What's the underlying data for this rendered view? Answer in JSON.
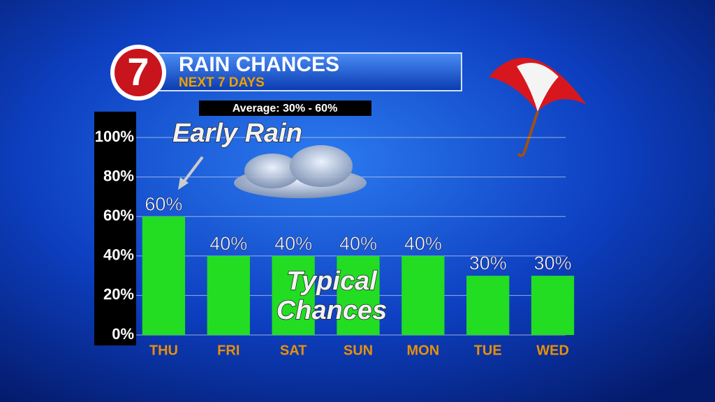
{
  "logo": "7",
  "chart_data": {
    "type": "bar",
    "title": "RAIN CHANCES",
    "subtitle": "NEXT 7 DAYS",
    "note": "Average: 30% - 60%",
    "annotations": [
      "Early Rain",
      "Typical",
      "Chances"
    ],
    "categories": [
      "THU",
      "FRI",
      "SAT",
      "SUN",
      "MON",
      "TUE",
      "WED"
    ],
    "values": [
      60,
      40,
      40,
      40,
      40,
      30,
      30
    ],
    "value_labels": [
      "60%",
      "40%",
      "40%",
      "40%",
      "40%",
      "30%",
      "30%"
    ],
    "color": "#22dd22",
    "ylim": [
      0,
      100
    ],
    "yticks": [
      {
        "value": 0,
        "label": "0%"
      },
      {
        "value": 20,
        "label": "20%"
      },
      {
        "value": 40,
        "label": "40%"
      },
      {
        "value": 60,
        "label": "60%"
      },
      {
        "value": 80,
        "label": "80%"
      },
      {
        "value": 100,
        "label": "100%"
      }
    ],
    "grid": true
  }
}
